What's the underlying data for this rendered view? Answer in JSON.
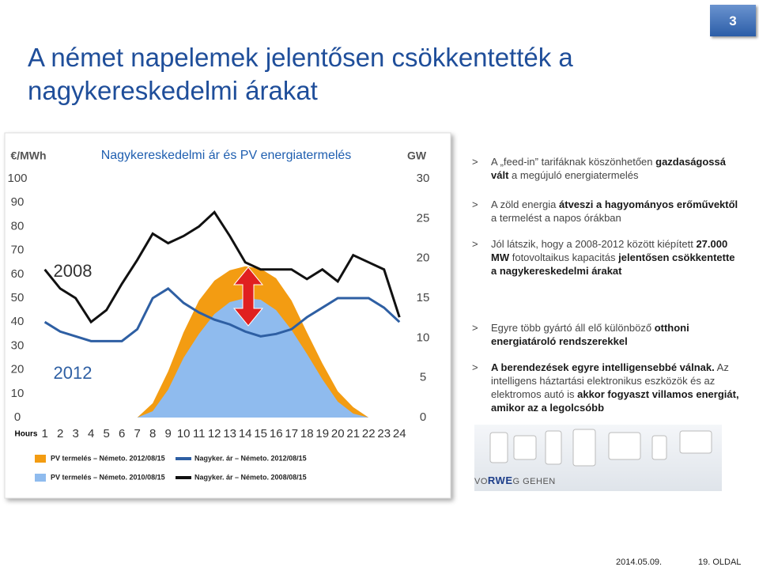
{
  "slide_number": "3",
  "title": "A német napelemek jelentősen csökkentették a nagykereskedelmi árakat",
  "bullet_marker": ">",
  "bullets": [
    [
      {
        "text": "A „feed-in” tarifáknak köszönhetően "
      },
      {
        "text": "gazdaságossá vált",
        "bold": true
      },
      {
        "text": " a megújuló energiatermelés"
      }
    ],
    [
      {
        "text": "A zöld energia "
      },
      {
        "text": "átveszi a hagyományos erőművektől",
        "bold": true
      },
      {
        "text": " a termelést a napos órákban"
      }
    ],
    [
      {
        "text": "Jól látszik, hogy a 2008-2012 között kiépített "
      },
      {
        "text": "27.000 MW",
        "bold": true
      },
      {
        "text": " fotovoltaikus kapacitás "
      },
      {
        "text": "jelentősen csökkentette a nagykereskedelmi árakat",
        "bold": true
      }
    ],
    [
      {
        "text": "Egyre több gyártó áll elő különböző "
      },
      {
        "text": "otthoni energiatároló rendszerekkel",
        "bold": true
      }
    ],
    [
      {
        "text": "A berendezések egyre intelligensebbé válnak.",
        "bold": true
      },
      {
        "text": " Az intelligens háztartási elektronikus eszközök és az elektromos autó is "
      },
      {
        "text": "akkor fogyaszt villamos energiát, amikor az a legolcsóbb",
        "bold": true
      }
    ]
  ],
  "logo": {
    "left": "VO",
    "middle": "RWE",
    "right": "G GEHEN"
  },
  "footer": {
    "date": "2014.05.09.",
    "page": "19. OLDAL"
  },
  "chart_data": {
    "type": "line",
    "title": "Nagykereskedelmi ár és PV energiatermelés",
    "y_label": "€/MWh",
    "y2_label": "GW",
    "x_label": "Hours",
    "annotations": [
      "2008",
      "2012"
    ],
    "x": [
      1,
      2,
      3,
      4,
      5,
      6,
      7,
      8,
      9,
      10,
      11,
      12,
      13,
      14,
      15,
      16,
      17,
      18,
      19,
      20,
      21,
      22,
      23,
      24
    ],
    "xlim": [
      0.25,
      24.5
    ],
    "ylim": [
      0,
      100
    ],
    "yticks": [
      0,
      10,
      20,
      30,
      40,
      50,
      60,
      70,
      80,
      90,
      100
    ],
    "y2lim": [
      0,
      30
    ],
    "y2ticks": [
      0,
      5,
      10,
      15,
      20,
      25,
      30
    ],
    "grid": false,
    "series": [
      {
        "name": "PV termelés – Németo. 2012/08/15",
        "type": "area",
        "axis": "y2",
        "color": "#f39c12",
        "values": [
          0,
          0,
          0,
          0,
          0,
          0,
          0,
          1.8,
          5.8,
          10.7,
          14.7,
          17.2,
          18.5,
          19,
          18.7,
          17.5,
          14.7,
          10.7,
          6.8,
          3.3,
          1.3,
          0,
          0,
          0
        ]
      },
      {
        "name": "Nagyker. ár – Németo. 2012/08/15",
        "type": "line",
        "color": "#2e5fa3",
        "values": [
          40,
          36,
          34,
          32,
          32,
          32,
          37,
          50,
          54,
          48,
          44,
          41,
          39,
          36,
          34,
          35,
          37,
          42,
          46,
          50,
          50,
          50,
          46,
          40
        ]
      },
      {
        "name": "PV termelés – Németo. 2010/08/15",
        "type": "area",
        "axis": "y2",
        "color": "#8fbbee",
        "values": [
          0,
          0,
          0,
          0,
          0,
          0,
          0,
          0.8,
          3.5,
          7.5,
          10.5,
          13,
          14.5,
          15,
          14.8,
          13.5,
          11,
          8,
          4.8,
          2,
          0.5,
          0,
          0,
          0
        ]
      },
      {
        "name": "Nagyker. ár – Németo. 2008/08/15",
        "type": "line",
        "color": "#111111",
        "values": [
          62,
          54,
          50,
          40,
          45,
          56,
          66,
          77,
          73,
          76,
          80,
          86,
          76,
          65,
          62,
          62,
          62,
          58,
          62,
          57,
          68,
          65,
          62,
          42
        ]
      }
    ]
  }
}
